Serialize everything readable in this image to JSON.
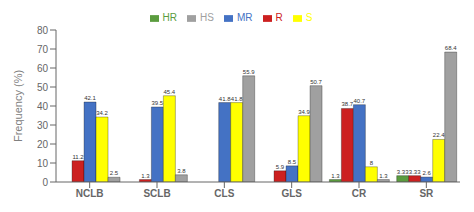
{
  "chart_data": {
    "type": "bar",
    "categories": [
      "NCLB",
      "SCLB",
      "CLS",
      "GLS",
      "CR",
      "SR"
    ],
    "series": [
      {
        "name": "HR",
        "color": "#5B9C3E",
        "values": [
          0,
          0,
          0,
          0,
          1.3,
          3.33
        ]
      },
      {
        "name": "R",
        "color": "#CC2020",
        "values": [
          11.2,
          1.3,
          0,
          5.9,
          38.7,
          3.33
        ]
      },
      {
        "name": "MR",
        "color": "#4472C4",
        "values": [
          42.1,
          39.5,
          41.8,
          8.5,
          40.7,
          2.6
        ]
      },
      {
        "name": "S",
        "color": "#FFFF00",
        "values": [
          34.2,
          45.4,
          41.8,
          34.9,
          8.0,
          22.4
        ]
      },
      {
        "name": "HS",
        "color": "#A0A0A0",
        "values": [
          2.5,
          3.8,
          55.9,
          50.7,
          1.3,
          68.4
        ]
      }
    ],
    "ylabel": "Frequency (%)",
    "ylim": [
      0,
      80
    ],
    "yticks": [
      0,
      10,
      20,
      30,
      40,
      50,
      60,
      70,
      80
    ],
    "grid": false,
    "legend": "top",
    "data_labels": true
  }
}
